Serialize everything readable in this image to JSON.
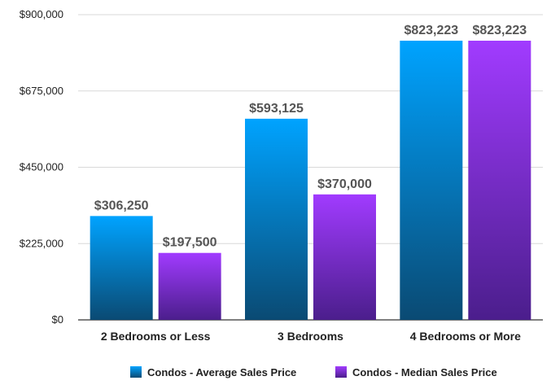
{
  "chart_data": {
    "type": "bar",
    "title": "",
    "xlabel": "",
    "ylabel": "",
    "categories": [
      "2 Bedrooms or Less",
      "3 Bedrooms",
      "4 Bedrooms or More"
    ],
    "ylim": [
      0,
      900000
    ],
    "yticks": [
      0,
      225000,
      450000,
      675000,
      900000
    ],
    "ytick_labels": [
      "$0",
      "$225,000",
      "$450,000",
      "$675,000",
      "$900,000"
    ],
    "grid": true,
    "legend_position": "bottom",
    "series": [
      {
        "name": "Condos - Average Sales Price",
        "values": [
          306250,
          593125,
          823223
        ],
        "labels": [
          "$306,250",
          "$593,125",
          "$823,223"
        ],
        "color_top": "#00a3ff",
        "color_bottom": "#0a4a73"
      },
      {
        "name": "Condos - Median Sales Price",
        "values": [
          197500,
          370000,
          823223
        ],
        "labels": [
          "$197,500",
          "$370,000",
          "$823,223"
        ],
        "color_top": "#a13bff",
        "color_bottom": "#4b1e8c"
      }
    ]
  }
}
